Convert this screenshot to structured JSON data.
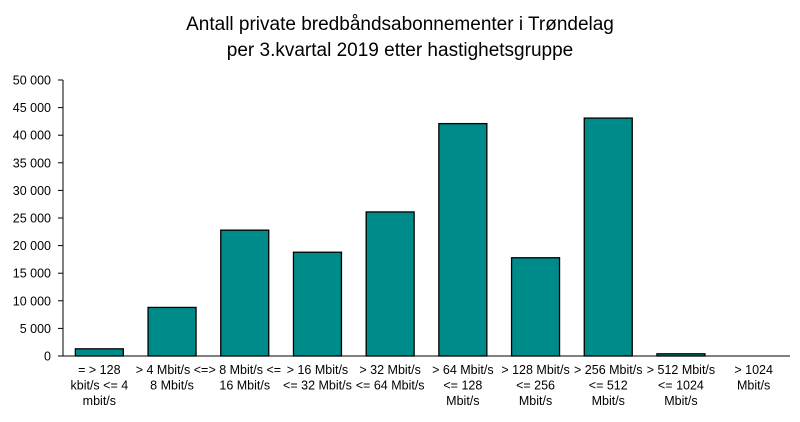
{
  "chart_data": {
    "type": "bar",
    "title_lines": [
      "Antall private bredbåndsabonnementer  i Trøndelag",
      "per 3.kvartal 2019 etter hastighetsgruppe"
    ],
    "categories": [
      [
        "= > 128",
        "kbit/s <= 4",
        "mbit/s"
      ],
      [
        "> 4 Mbit/s <=",
        "8 Mbit/s"
      ],
      [
        "> 8 Mbit/s <=",
        "16 Mbit/s"
      ],
      [
        "> 16 Mbit/s",
        "<= 32 Mbit/s"
      ],
      [
        "> 32 Mbit/s",
        "<= 64 Mbit/s"
      ],
      [
        "> 64 Mbit/s",
        "<= 128",
        "Mbit/s"
      ],
      [
        "> 128 Mbit/s",
        "<= 256",
        "Mbit/s"
      ],
      [
        "> 256 Mbit/s",
        "<= 512",
        "Mbit/s"
      ],
      [
        "> 512 Mbit/s",
        "<= 1024",
        "Mbit/s"
      ],
      [
        "> 1024",
        "Mbit/s"
      ]
    ],
    "values": [
      1300,
      8800,
      22800,
      18800,
      26100,
      42100,
      17800,
      43100,
      400,
      0
    ],
    "ylim": [
      0,
      50000
    ],
    "yticks": [
      0,
      5000,
      10000,
      15000,
      20000,
      25000,
      30000,
      35000,
      40000,
      45000,
      50000
    ],
    "ytick_labels": [
      "0",
      "5 000",
      "10 000",
      "15 000",
      "20 000",
      "25 000",
      "30 000",
      "35 000",
      "40 000",
      "45 000",
      "50 000"
    ],
    "bar_color": "#008b8b",
    "grid": false,
    "xlabel": "",
    "ylabel": ""
  }
}
